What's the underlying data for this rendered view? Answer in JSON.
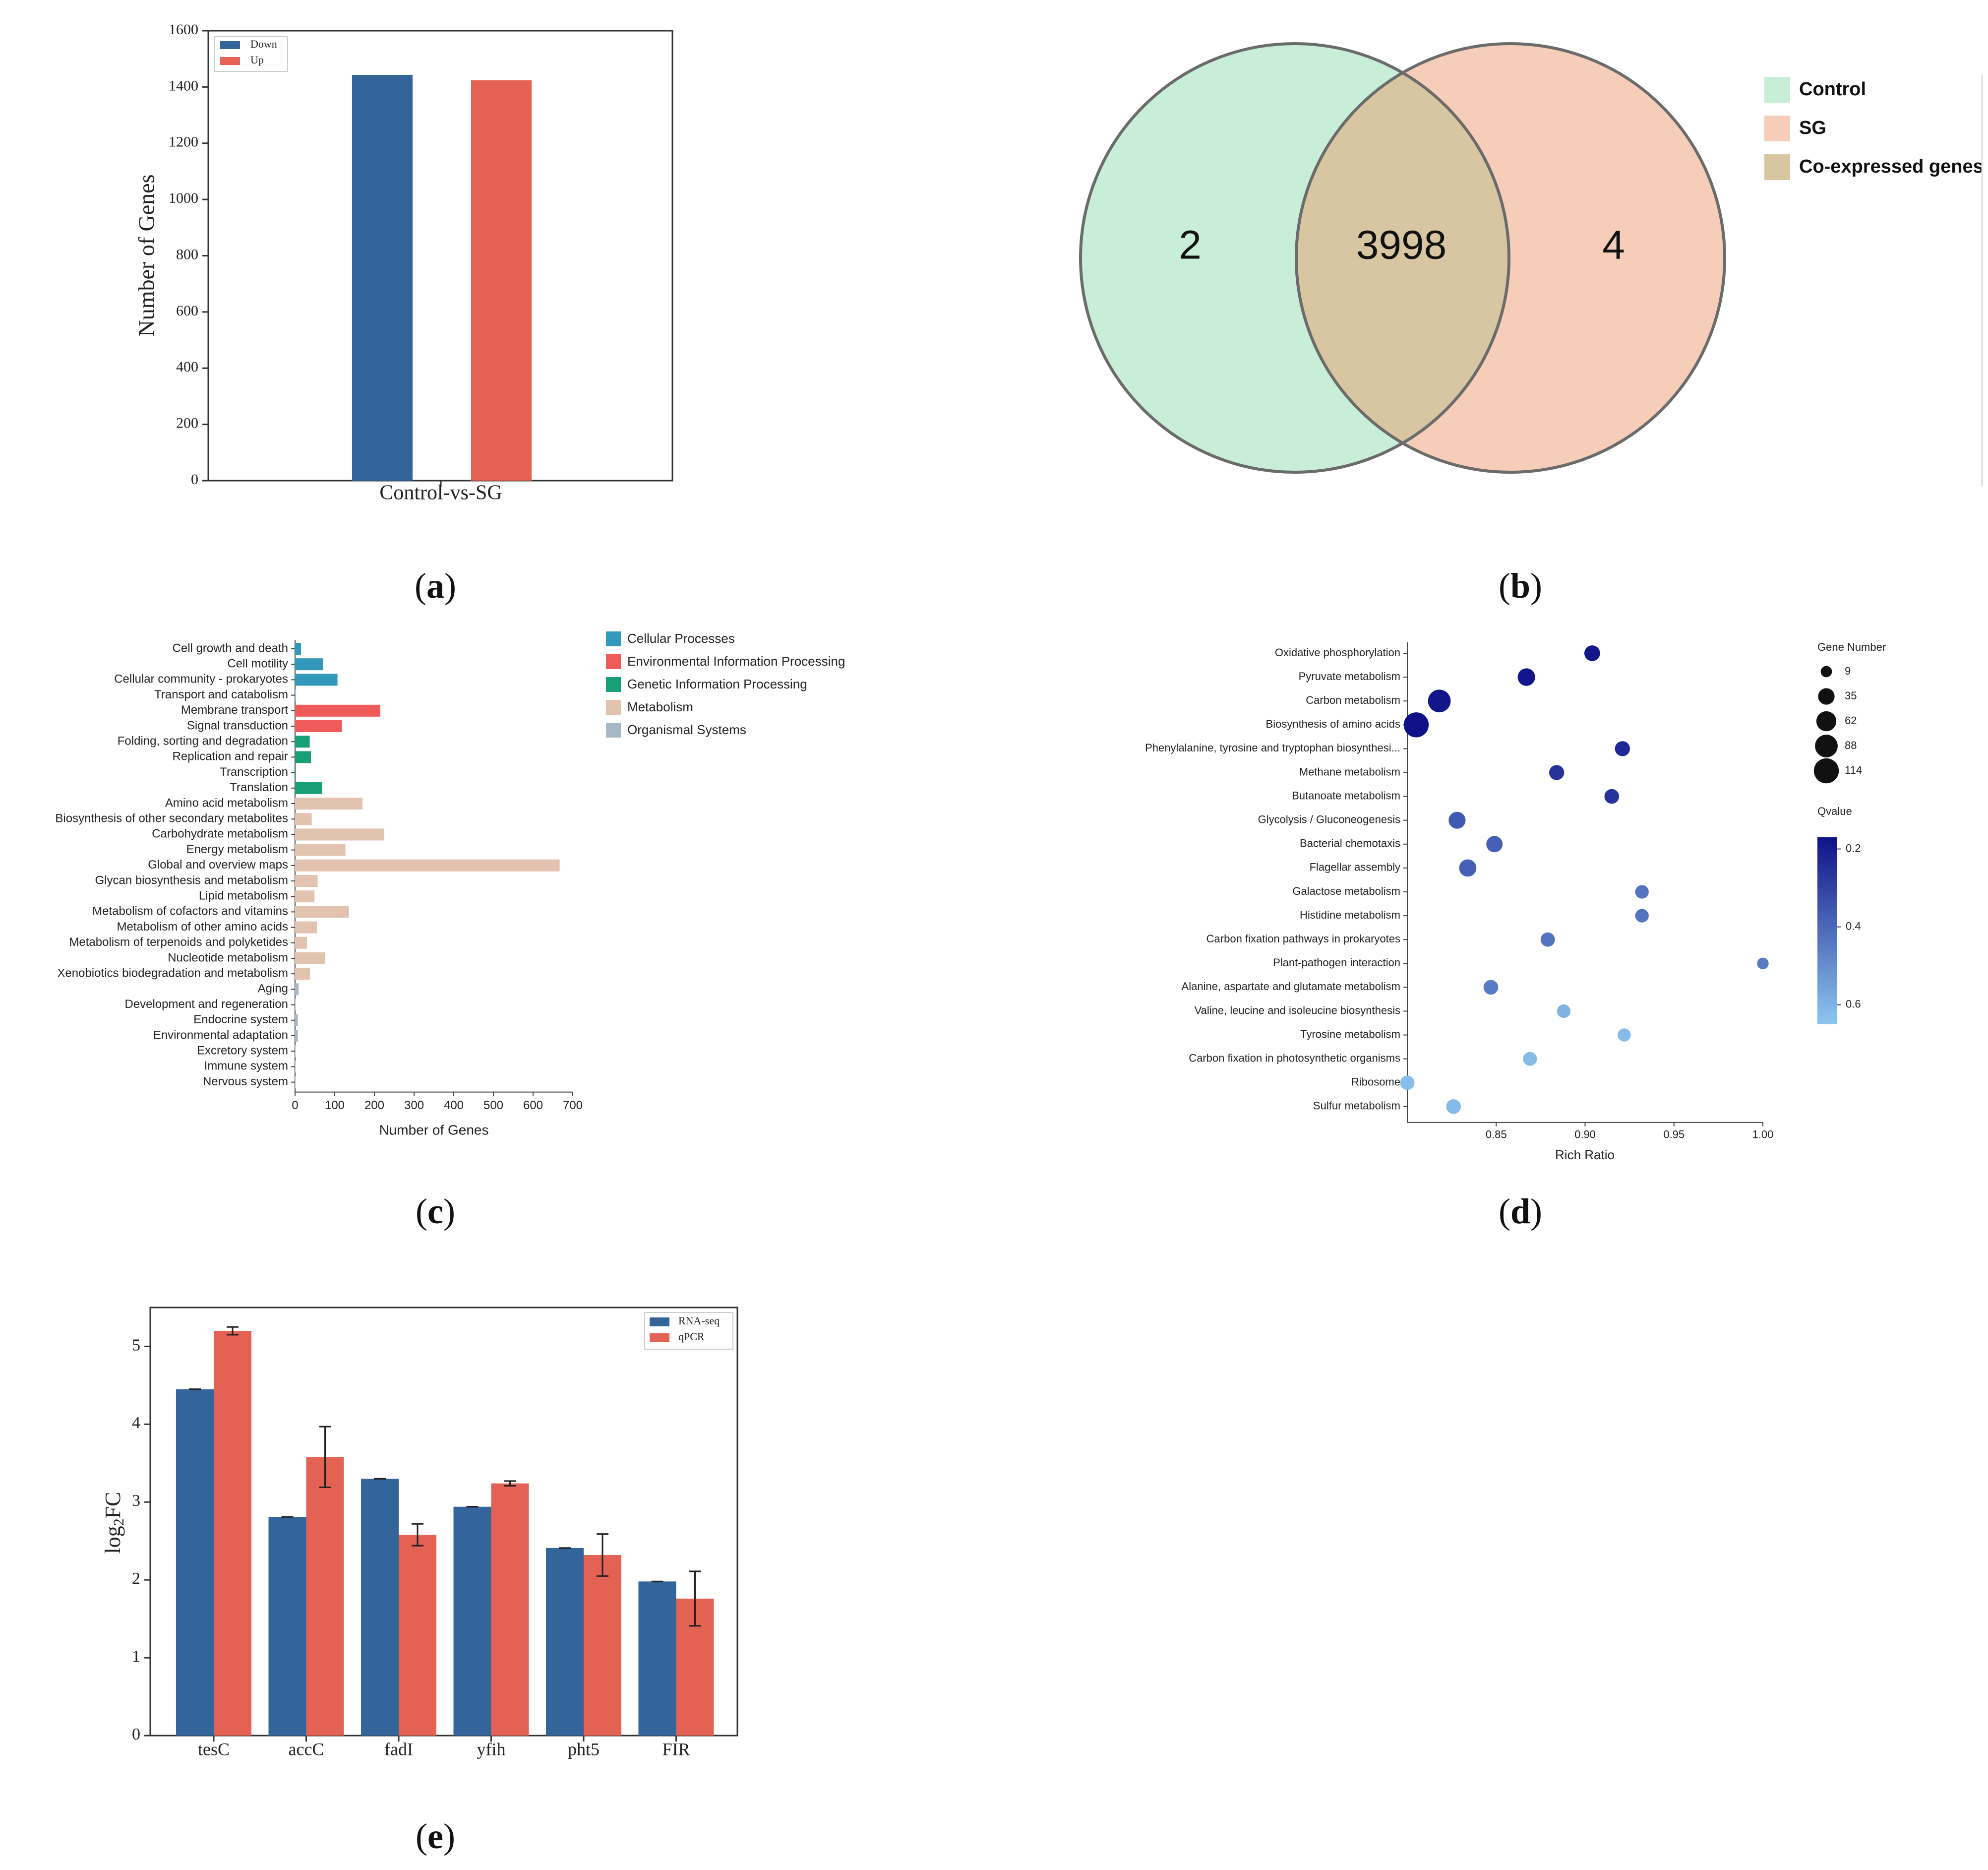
{
  "colors": {
    "down_blue": "#34659a",
    "up_red": "#e36254",
    "venn_control": "#c8eed8",
    "venn_sg": "#f6cdb8",
    "venn_overlap": "#d7c6a1",
    "venn_outline": "#6b6b6b",
    "kegg_cellular": "#3399bb",
    "kegg_env": "#ef5b5b",
    "kegg_genetic": "#1a9e77",
    "kegg_metabolism": "#e2c3b0",
    "kegg_organismal": "#a6b8c8",
    "q_dark": "#101188",
    "q_light": "#8dc6ef"
  },
  "panels": {
    "a": {
      "label": "a"
    },
    "b": {
      "label": "b"
    },
    "c": {
      "label": "c"
    },
    "d": {
      "label": "d"
    },
    "e": {
      "label": "e"
    }
  },
  "chart_data": [
    {
      "id": "a",
      "type": "bar",
      "categories": [
        "Control-vs-SG"
      ],
      "series": [
        {
          "name": "Down",
          "values": [
            1443
          ]
        },
        {
          "name": "Up",
          "values": [
            1424
          ]
        }
      ],
      "ylabel": "Number of Genes",
      "xlabel": "",
      "ylim": [
        0,
        1600
      ],
      "yticks": [
        0,
        200,
        400,
        600,
        800,
        1000,
        1200,
        1400,
        1600
      ],
      "legend": "top-left"
    },
    {
      "id": "b",
      "type": "venn",
      "sets": [
        "Control",
        "SG"
      ],
      "only_control": "2",
      "overlap": "3998",
      "only_sg": "4",
      "legend": [
        "Control",
        "SG",
        "Co-expressed genes"
      ]
    },
    {
      "id": "c",
      "type": "bar",
      "orientation": "horizontal",
      "xlabel": "Number of Genes",
      "xlim": [
        0,
        700
      ],
      "xticks": [
        0,
        100,
        200,
        300,
        400,
        500,
        600,
        700
      ],
      "legend_items": [
        {
          "name": "Cellular Processes",
          "color": "#3399bb"
        },
        {
          "name": "Environmental Information Processing",
          "color": "#ef5b5b"
        },
        {
          "name": "Genetic Information Processing",
          "color": "#1a9e77"
        },
        {
          "name": "Metabolism",
          "color": "#e2c3b0"
        },
        {
          "name": "Organismal Systems",
          "color": "#a6b8c8"
        }
      ],
      "bars": [
        {
          "label": "Cell growth and death",
          "value": 15,
          "group": 0
        },
        {
          "label": "Cell motility",
          "value": 70,
          "group": 0
        },
        {
          "label": "Cellular community - prokaryotes",
          "value": 107,
          "group": 0
        },
        {
          "label": "Transport and catabolism",
          "value": 1,
          "group": 0
        },
        {
          "label": "Membrane transport",
          "value": 215,
          "group": 1
        },
        {
          "label": "Signal transduction",
          "value": 118,
          "group": 1
        },
        {
          "label": "Folding, sorting and degradation",
          "value": 37,
          "group": 2
        },
        {
          "label": "Replication and repair",
          "value": 40,
          "group": 2
        },
        {
          "label": "Transcription",
          "value": 2,
          "group": 2
        },
        {
          "label": "Translation",
          "value": 68,
          "group": 2
        },
        {
          "label": "Amino acid metabolism",
          "value": 170,
          "group": 3
        },
        {
          "label": "Biosynthesis of other secondary metabolites",
          "value": 42,
          "group": 3
        },
        {
          "label": "Carbohydrate metabolism",
          "value": 225,
          "group": 3
        },
        {
          "label": "Energy metabolism",
          "value": 127,
          "group": 3
        },
        {
          "label": "Global and overview maps",
          "value": 667,
          "group": 3
        },
        {
          "label": "Glycan biosynthesis and metabolism",
          "value": 57,
          "group": 3
        },
        {
          "label": "Lipid metabolism",
          "value": 49,
          "group": 3
        },
        {
          "label": "Metabolism of cofactors and vitamins",
          "value": 136,
          "group": 3
        },
        {
          "label": "Metabolism of other amino acids",
          "value": 55,
          "group": 3
        },
        {
          "label": "Metabolism of terpenoids and polyketides",
          "value": 30,
          "group": 3
        },
        {
          "label": "Nucleotide metabolism",
          "value": 75,
          "group": 3
        },
        {
          "label": "Xenobiotics biodegradation and metabolism",
          "value": 38,
          "group": 3
        },
        {
          "label": "Aging",
          "value": 9,
          "group": 4
        },
        {
          "label": "Development and regeneration",
          "value": 1,
          "group": 4
        },
        {
          "label": "Endocrine system",
          "value": 7,
          "group": 4
        },
        {
          "label": "Environmental adaptation",
          "value": 7,
          "group": 4
        },
        {
          "label": "Excretory system",
          "value": 1,
          "group": 4
        },
        {
          "label": "Immune system",
          "value": 1,
          "group": 4
        },
        {
          "label": "Nervous system",
          "value": 1,
          "group": 4
        }
      ]
    },
    {
      "id": "d",
      "type": "scatter",
      "xlabel": "Rich Ratio",
      "xlim": [
        0.8,
        1.0
      ],
      "xticks": [
        0.85,
        0.9,
        0.95,
        1.0
      ],
      "size_legend_title": "Gene Number",
      "size_legend": [
        9,
        35,
        62,
        88,
        114
      ],
      "color_legend_title": "Qvalue",
      "color_range": [
        0.17,
        0.65
      ],
      "color_ticks": [
        0.2,
        0.4,
        0.6
      ],
      "points": [
        {
          "label": "Oxidative phosphorylation",
          "x": 0.904,
          "size": 30,
          "q": 0.18
        },
        {
          "label": "Pyruvate metabolism",
          "x": 0.867,
          "size": 42,
          "q": 0.18
        },
        {
          "label": "Carbon metabolism",
          "x": 0.818,
          "size": 88,
          "q": 0.18
        },
        {
          "label": "Biosynthesis of amino acids",
          "x": 0.805,
          "size": 114,
          "q": 0.17
        },
        {
          "label": "Phenylalanine, tyrosine and tryptophan biosynthesi...",
          "x": 0.921,
          "size": 26,
          "q": 0.23
        },
        {
          "label": "Methane metabolism",
          "x": 0.884,
          "size": 26,
          "q": 0.26
        },
        {
          "label": "Butanoate metabolism",
          "x": 0.915,
          "size": 24,
          "q": 0.26
        },
        {
          "label": "Glycolysis / Gluconeogenesis",
          "x": 0.828,
          "size": 38,
          "q": 0.36
        },
        {
          "label": "Bacterial chemotaxis",
          "x": 0.849,
          "size": 34,
          "q": 0.38
        },
        {
          "label": "Flagellar assembly",
          "x": 0.834,
          "size": 40,
          "q": 0.38
        },
        {
          "label": "Galactose metabolism",
          "x": 0.932,
          "size": 18,
          "q": 0.43
        },
        {
          "label": "Histidine metabolism",
          "x": 0.932,
          "size": 18,
          "q": 0.43
        },
        {
          "label": "Carbon fixation pathways in prokaryotes",
          "x": 0.879,
          "size": 22,
          "q": 0.43
        },
        {
          "label": "Plant-pathogen interaction",
          "x": 1.0,
          "size": 10,
          "q": 0.45
        },
        {
          "label": "Alanine, aspartate and glutamate metabolism",
          "x": 0.847,
          "size": 24,
          "q": 0.45
        },
        {
          "label": "Valine, leucine and isoleucine biosynthesis",
          "x": 0.888,
          "size": 18,
          "q": 0.6
        },
        {
          "label": "Tyrosine metabolism",
          "x": 0.922,
          "size": 16,
          "q": 0.62
        },
        {
          "label": "Carbon fixation in photosynthetic organisms",
          "x": 0.869,
          "size": 20,
          "q": 0.62
        },
        {
          "label": "Ribosome",
          "x": 0.8,
          "size": 22,
          "q": 0.63
        },
        {
          "label": "Sulfur metabolism",
          "x": 0.826,
          "size": 24,
          "q": 0.62
        }
      ]
    },
    {
      "id": "e",
      "type": "bar",
      "categories": [
        "tesC",
        "accC",
        "fadI",
        "yfih",
        "pht5",
        "FIR"
      ],
      "series": [
        {
          "name": "RNA-seq",
          "values": [
            4.45,
            2.81,
            3.3,
            2.94,
            2.41,
            1.98
          ],
          "errors": [
            0.0,
            0.0,
            0.0,
            0.0,
            0.0,
            0.0
          ]
        },
        {
          "name": "qPCR",
          "values": [
            5.2,
            3.58,
            2.58,
            3.24,
            2.32,
            1.76
          ],
          "errors": [
            0.05,
            0.39,
            0.14,
            0.03,
            0.27,
            0.35
          ]
        }
      ],
      "ylabel": "log2FC",
      "ylabel_main": "log",
      "ylabel_sub": "2",
      "ylabel_tail": "FC",
      "ylim": [
        0,
        5.5
      ],
      "yticks": [
        0,
        1,
        2,
        3,
        4,
        5
      ],
      "legend": "top-right"
    }
  ]
}
